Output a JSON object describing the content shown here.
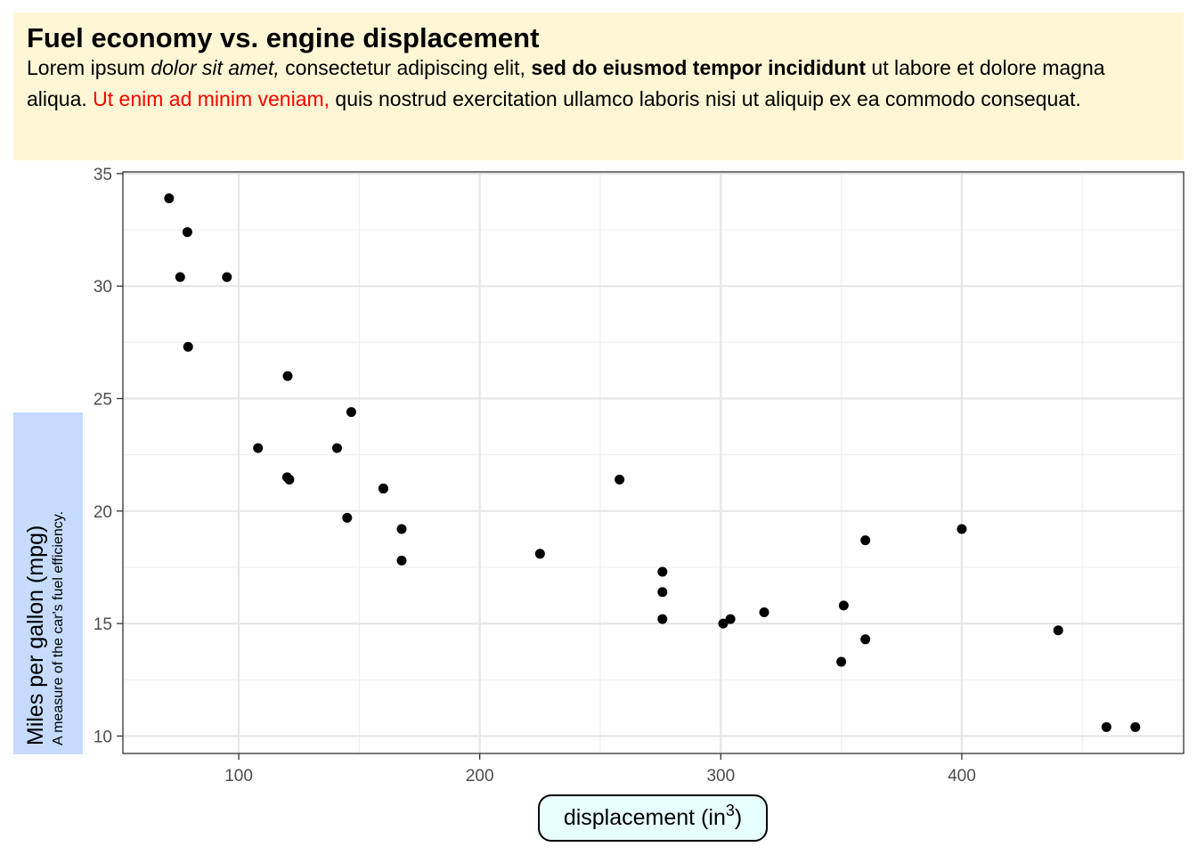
{
  "chart_data": {
    "type": "scatter",
    "title": "Fuel economy vs. engine displacement",
    "subtitle_parts": [
      {
        "text": "Lorem ipsum ",
        "style": "normal"
      },
      {
        "text": "dolor sit amet,",
        "style": "italic"
      },
      {
        "text": " consectetur adipiscing elit, ",
        "style": "normal"
      },
      {
        "text": "sed do eiusmod tempor incididunt",
        "style": "bold"
      },
      {
        "text": " ut labore et dolore magna aliqua. ",
        "style": "normal"
      },
      {
        "text": "Ut enim ad minim veniam,",
        "style": "red"
      },
      {
        "text": " quis nostrud exercitation ullamco laboris nisi ut aliquip ex ea commodo consequat.",
        "style": "normal"
      }
    ],
    "xlabel": "displacement (in",
    "xlabel_superscript": "3",
    "xlabel_close": ")",
    "ylabel": "Miles per gallon (mpg)",
    "ylabel_sub": "A measure of the car's fuel efficiency.",
    "xlim": [
      51.945,
      492.035
    ],
    "ylim": [
      9.225,
      35.075
    ],
    "x_ticks": [
      100,
      200,
      300,
      400
    ],
    "y_ticks": [
      10,
      15,
      20,
      25,
      30,
      35
    ],
    "x_tick_labels": [
      "100",
      "200",
      "300",
      "400"
    ],
    "y_tick_labels": [
      "10",
      "15",
      "20",
      "25",
      "30",
      "35"
    ],
    "grid": true,
    "point_color": "#000000",
    "x": [
      160,
      160,
      108,
      258,
      360,
      225,
      360,
      146.7,
      140.8,
      167.6,
      167.6,
      275.8,
      275.8,
      275.8,
      472,
      460,
      440,
      78.7,
      75.7,
      71.1,
      120.1,
      318,
      304,
      350,
      400,
      79,
      120.3,
      95.1,
      351,
      145,
      301,
      121
    ],
    "y": [
      21,
      21,
      22.8,
      21.4,
      18.7,
      18.1,
      14.3,
      24.4,
      22.8,
      19.2,
      17.8,
      16.4,
      17.3,
      15.2,
      10.4,
      10.4,
      14.7,
      32.4,
      30.4,
      33.9,
      21.5,
      15.5,
      15.2,
      13.3,
      19.2,
      27.3,
      26,
      30.4,
      15.8,
      19.7,
      15,
      21.4
    ]
  },
  "colors": {
    "title_background": "#fff6d5",
    "ylabel_background": "#c6dcff",
    "xlabel_background": "#e6ffff",
    "highlight_text": "#ff0000"
  }
}
